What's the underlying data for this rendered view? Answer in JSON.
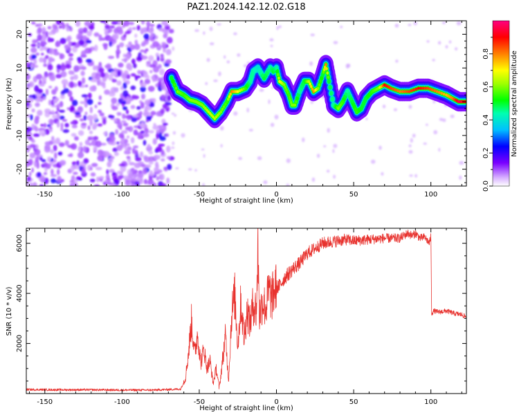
{
  "title": "PAZ1.2024.142.12.02.G18",
  "chart_data": [
    {
      "type": "heatmap",
      "xlabel": "Height of straight line (km)",
      "ylabel": "Frequency (Hz)",
      "xlim": [
        -162,
        123
      ],
      "ylim": [
        -25,
        24
      ],
      "xticks": [
        -150,
        -100,
        -50,
        0,
        50,
        100
      ],
      "yticks": [
        -20,
        -10,
        0,
        10,
        20
      ],
      "colorbar": {
        "label": "Normalized spectral amplitude",
        "range": [
          0,
          1
        ],
        "ticks": [
          "0.0",
          "0.2",
          "0.4",
          "0.6",
          "0.8"
        ],
        "colormap": "gist_rainbow_r"
      },
      "noise_region": [
        -162,
        -68
      ],
      "ridge": {
        "x": [
          -68,
          -64,
          -60,
          -56,
          -52,
          -48,
          -44,
          -40,
          -36,
          -32,
          -29,
          -25,
          -20,
          -17,
          -15,
          -12,
          -8,
          -4,
          -2,
          0,
          2,
          5,
          8,
          10,
          12,
          15,
          18,
          21,
          24,
          27,
          30,
          32,
          34,
          37,
          40,
          43,
          46,
          49,
          52,
          55,
          58,
          62,
          66,
          70,
          74,
          80,
          86,
          92,
          98,
          104,
          110,
          114,
          118,
          122
        ],
        "y": [
          7,
          3,
          2,
          0.5,
          0,
          -1,
          -3,
          -5,
          -3,
          0,
          3,
          3,
          4,
          6,
          9,
          10,
          7,
          10,
          9,
          10,
          6,
          5,
          2,
          -1,
          -1,
          3,
          6,
          6,
          3,
          4,
          8,
          11,
          6,
          -1,
          -2,
          0,
          3,
          0,
          -3,
          -2,
          1,
          3,
          4,
          5,
          4,
          3,
          3,
          4,
          4,
          3,
          2,
          1,
          0,
          0
        ],
        "amplitude": [
          0.5,
          0.6,
          0.55,
          0.6,
          0.6,
          0.6,
          0.65,
          0.65,
          0.6,
          0.55,
          0.8,
          0.7,
          0.55,
          0.45,
          0.45,
          0.4,
          0.5,
          0.45,
          0.5,
          0.45,
          0.7,
          0.6,
          0.55,
          0.6,
          0.6,
          0.45,
          0.5,
          0.65,
          0.8,
          0.6,
          0.5,
          0.8,
          0.5,
          0.45,
          0.6,
          0.55,
          0.45,
          0.5,
          0.55,
          0.5,
          0.5,
          0.55,
          0.6,
          0.9,
          0.85,
          0.8,
          0.85,
          0.9,
          0.85,
          0.8,
          0.75,
          0.8,
          0.95,
          0.9
        ]
      }
    },
    {
      "type": "line",
      "xlabel": "Height of straight line (km)",
      "ylabel": "SNR (10 * v/v)",
      "xlim": [
        -162,
        123
      ],
      "ylim": [
        0,
        6600
      ],
      "xticks": [
        -150,
        -100,
        -50,
        0,
        50,
        100
      ],
      "yticks": [
        2000,
        4000,
        6000
      ],
      "color": "#e8332f",
      "series": [
        {
          "x": [
            -162,
            -140,
            -120,
            -100,
            -80,
            -62,
            -59,
            -57,
            -55,
            -53,
            -51,
            -49,
            -47,
            -45,
            -43,
            -41,
            -39,
            -37,
            -35,
            -33,
            -31,
            -29,
            -27,
            -25,
            -23,
            -21,
            -19,
            -17,
            -15,
            -13,
            -12,
            -11,
            -9,
            -7,
            -5,
            -3,
            -1,
            2,
            5,
            8,
            11,
            15,
            20,
            25,
            30,
            35,
            40,
            45,
            50,
            60,
            70,
            80,
            85,
            88,
            90,
            93,
            96,
            99,
            100,
            100.5,
            102,
            105,
            110,
            115,
            120,
            123
          ],
          "y": [
            160,
            150,
            150,
            140,
            140,
            180,
            600,
            1600,
            2900,
            1600,
            2400,
            1200,
            1800,
            1000,
            1300,
            400,
            1000,
            200,
            1300,
            2300,
            500,
            3200,
            3900,
            1900,
            3700,
            2200,
            3300,
            2800,
            3600,
            3300,
            5800,
            3100,
            3700,
            3400,
            4100,
            3800,
            4200,
            4300,
            4600,
            4800,
            5000,
            5200,
            5600,
            5800,
            6000,
            6050,
            6100,
            6150,
            6100,
            6150,
            6200,
            6200,
            6400,
            6300,
            6400,
            6200,
            6250,
            6000,
            6300,
            3200,
            3300,
            3250,
            3300,
            3200,
            3150,
            3050
          ]
        }
      ]
    }
  ]
}
